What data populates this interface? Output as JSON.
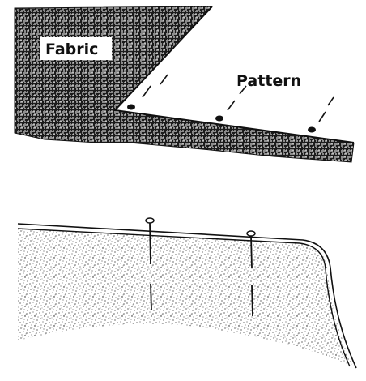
{
  "figure_top": {
    "fabric_label": "Fabric",
    "pattern_label": "Pattern"
  },
  "colors": {
    "ink": "#111111",
    "paper": "#ffffff"
  },
  "icons": {
    "pin_head": "pin-head-icon",
    "pin_shaft": "pin-shaft-icon"
  }
}
